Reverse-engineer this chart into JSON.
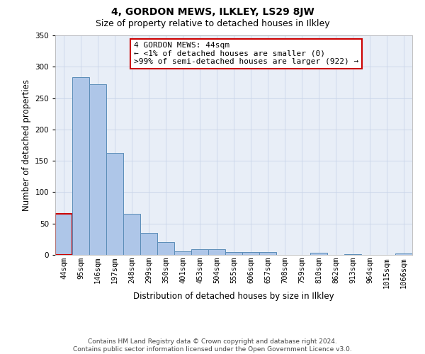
{
  "title": "4, GORDON MEWS, ILKLEY, LS29 8JW",
  "subtitle": "Size of property relative to detached houses in Ilkley",
  "xlabel": "Distribution of detached houses by size in Ilkley",
  "ylabel": "Number of detached properties",
  "categories": [
    "44sqm",
    "95sqm",
    "146sqm",
    "197sqm",
    "248sqm",
    "299sqm",
    "350sqm",
    "401sqm",
    "453sqm",
    "504sqm",
    "555sqm",
    "606sqm",
    "657sqm",
    "708sqm",
    "759sqm",
    "810sqm",
    "862sqm",
    "913sqm",
    "964sqm",
    "1015sqm",
    "1066sqm"
  ],
  "values": [
    65,
    283,
    272,
    163,
    65,
    35,
    20,
    6,
    9,
    9,
    5,
    4,
    4,
    0,
    0,
    3,
    0,
    1,
    0,
    0,
    2
  ],
  "bar_color": "#aec6e8",
  "bar_edge_color": "#5b8db8",
  "highlight_bar_index": 0,
  "highlight_bar_edge_color": "#cc0000",
  "annotation_text": "4 GORDON MEWS: 44sqm\n← <1% of detached houses are smaller (0)\n>99% of semi-detached houses are larger (922) →",
  "annotation_box_color": "#ffffff",
  "annotation_box_edge_color": "#cc0000",
  "ylim": [
    0,
    350
  ],
  "yticks": [
    0,
    50,
    100,
    150,
    200,
    250,
    300,
    350
  ],
  "grid_color": "#c8d4e8",
  "background_color": "#e8eef7",
  "footer_text": "Contains HM Land Registry data © Crown copyright and database right 2024.\nContains public sector information licensed under the Open Government Licence v3.0.",
  "title_fontsize": 10,
  "subtitle_fontsize": 9,
  "xlabel_fontsize": 8.5,
  "ylabel_fontsize": 8.5,
  "tick_fontsize": 7.5,
  "annotation_fontsize": 8,
  "footer_fontsize": 6.5
}
